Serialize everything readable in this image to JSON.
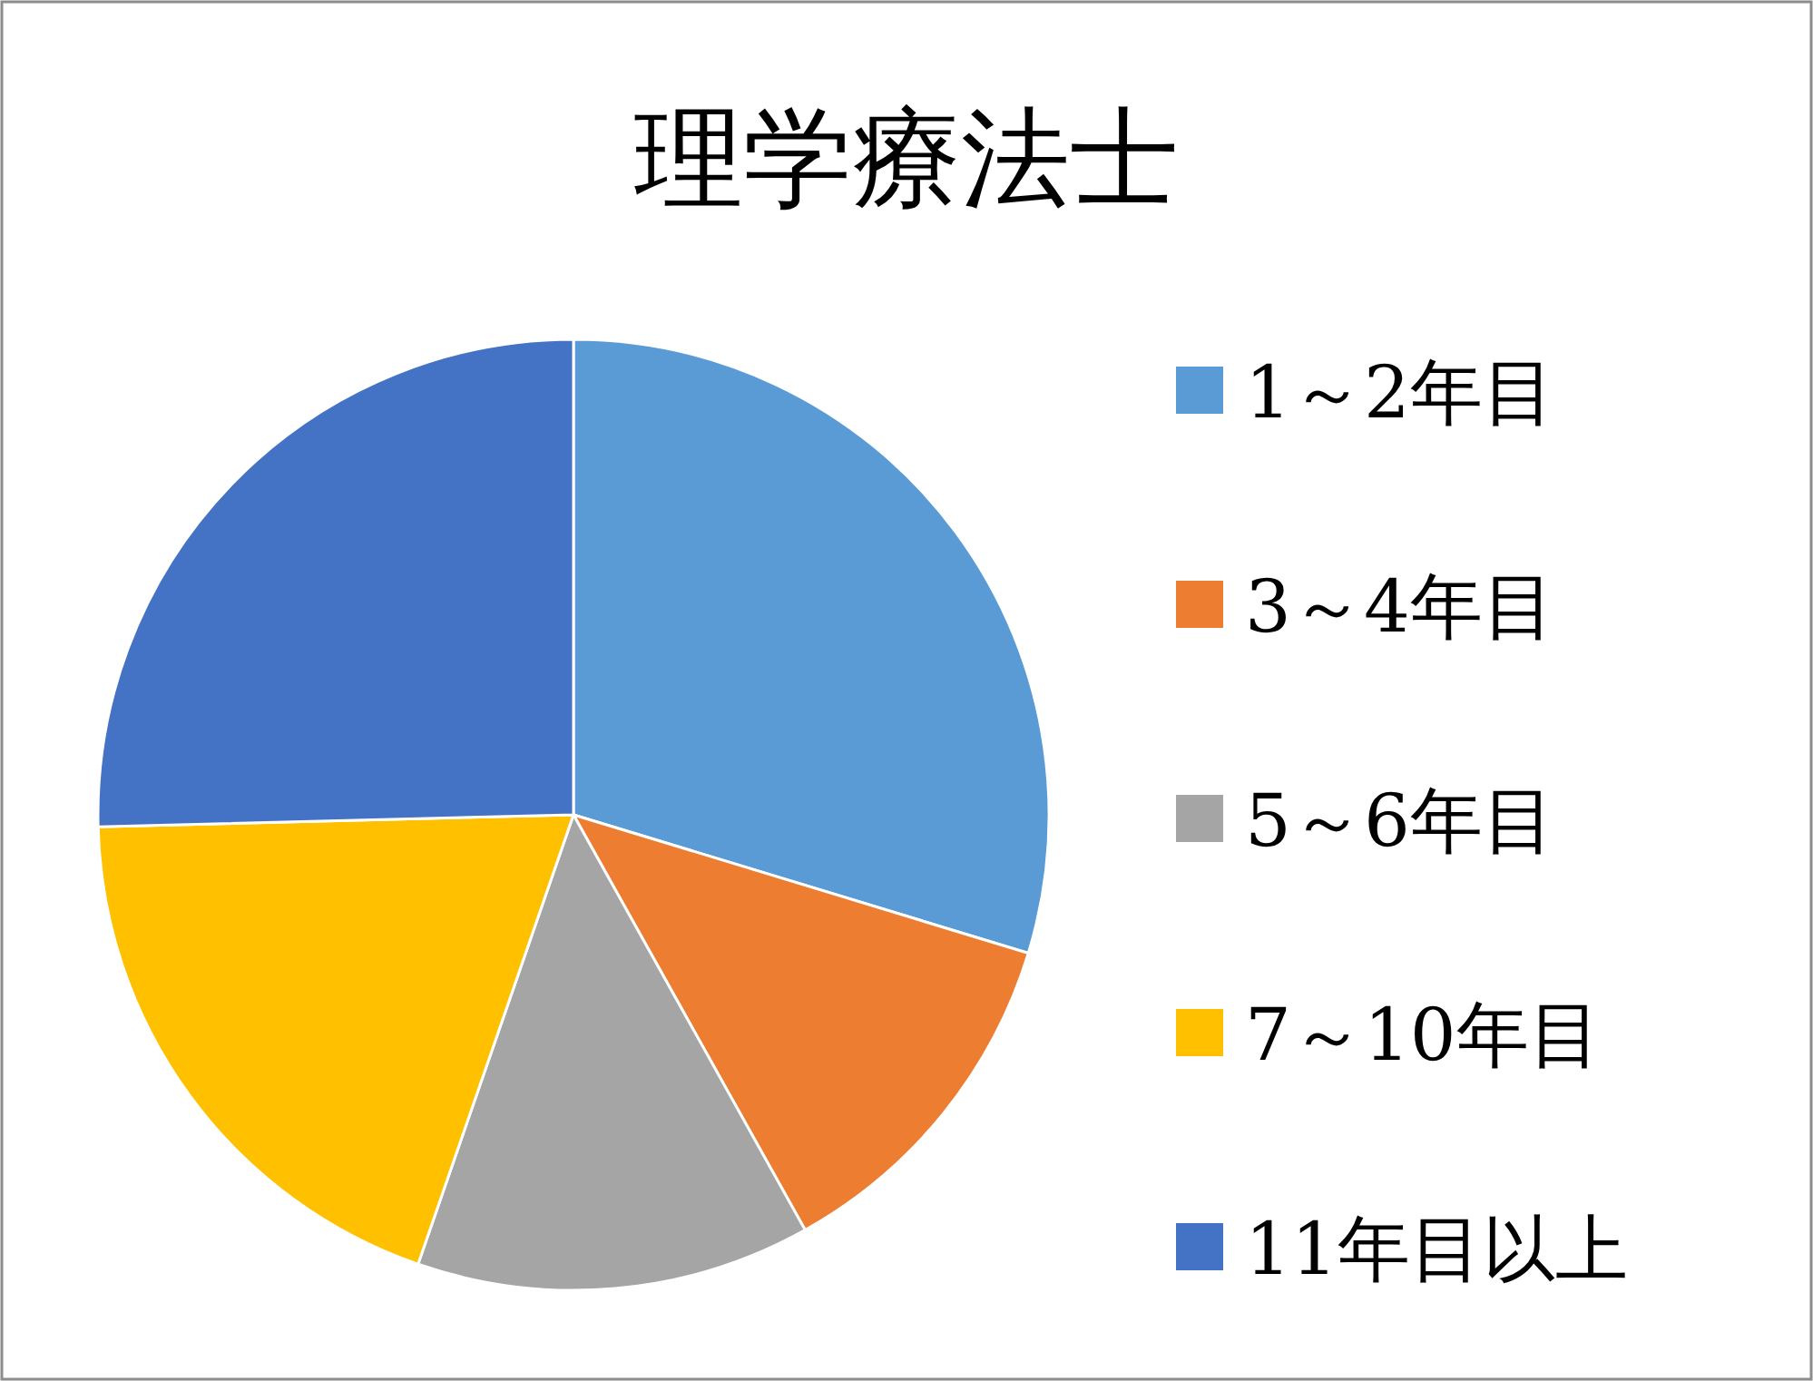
{
  "chart_data": {
    "type": "pie",
    "title": "理学療法士",
    "categories": [
      "1～2年目",
      "3～4年目",
      "5～6年目",
      "7～10年目",
      "11年目以上"
    ],
    "values": [
      29.7,
      12.2,
      13.4,
      19.3,
      25.4
    ],
    "colors": [
      "#5b9bd5",
      "#ed7d31",
      "#a5a5a5",
      "#ffc000",
      "#4472c4"
    ],
    "legend": "right"
  }
}
